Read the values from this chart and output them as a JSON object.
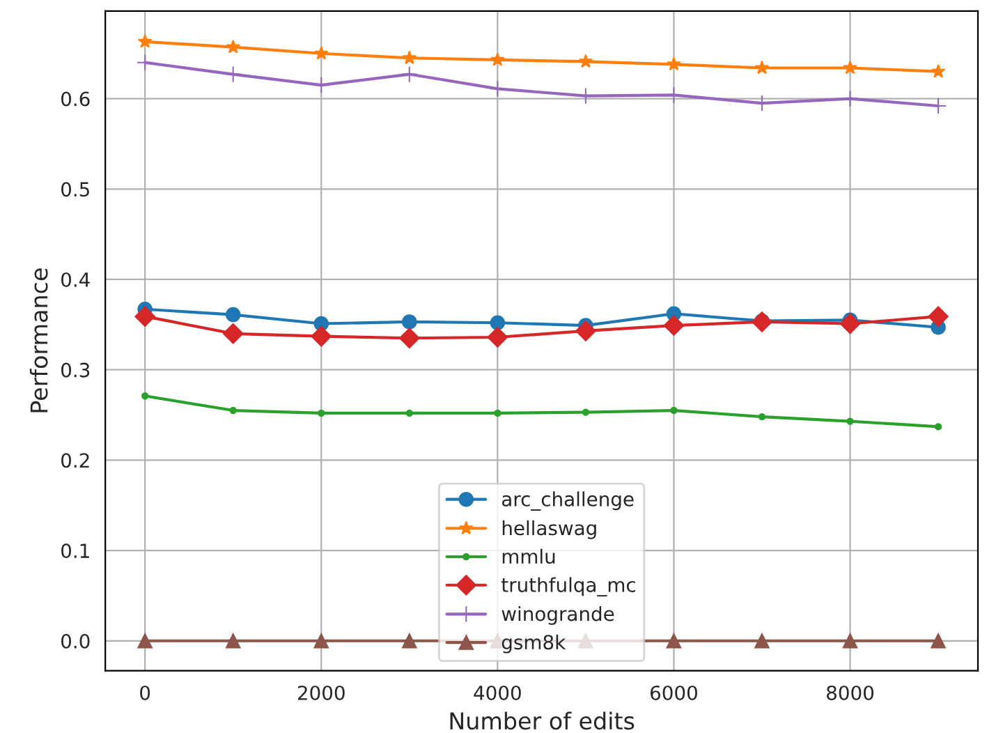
{
  "chart_data": {
    "type": "line",
    "xlabel": "Number of edits",
    "ylabel": "Performance",
    "x": [
      0,
      1000,
      2000,
      3000,
      4000,
      5000,
      6000,
      7000,
      8000,
      9000
    ],
    "xlim": [
      -450,
      9450
    ],
    "xticks": [
      0,
      2000,
      4000,
      6000,
      8000
    ],
    "ylim": [
      -0.033,
      0.697
    ],
    "yticks": [
      {
        "value": 0.0,
        "label": "0.0"
      },
      0.1,
      0.2,
      0.3,
      0.4,
      0.5,
      0.6
    ],
    "grid": true,
    "legend": "bottom",
    "series": [
      {
        "name": "arc_challenge",
        "color": "#1f77b4",
        "marker": "circle",
        "values": [
          0.367,
          0.361,
          0.351,
          0.353,
          0.352,
          0.349,
          0.362,
          0.354,
          0.355,
          0.347
        ]
      },
      {
        "name": "hellaswag",
        "color": "#ff7f0e",
        "marker": "star",
        "values": [
          0.663,
          0.657,
          0.65,
          0.645,
          0.643,
          0.641,
          0.638,
          0.634,
          0.634,
          0.63
        ]
      },
      {
        "name": "mmlu",
        "color": "#2ca02c",
        "marker": "point",
        "values": [
          0.271,
          0.255,
          0.252,
          0.252,
          0.252,
          0.253,
          0.255,
          0.248,
          0.243,
          0.237
        ]
      },
      {
        "name": "truthfulqa_mc",
        "color": "#d62728",
        "marker": "diamond",
        "values": [
          0.359,
          0.34,
          0.337,
          0.335,
          0.336,
          0.343,
          0.349,
          0.353,
          0.351,
          0.359
        ]
      },
      {
        "name": "winogrande",
        "color": "#9467bd",
        "marker": "plus",
        "values": [
          0.64,
          0.627,
          0.615,
          0.627,
          0.611,
          0.603,
          0.604,
          0.595,
          0.6,
          0.592
        ]
      },
      {
        "name": "gsm8k",
        "color": "#8c564b",
        "marker": "triangle",
        "values": [
          0.0,
          0.0,
          0.0,
          0.0,
          0.0,
          0.0,
          0.0,
          0.0,
          0.0,
          0.0
        ]
      }
    ]
  }
}
